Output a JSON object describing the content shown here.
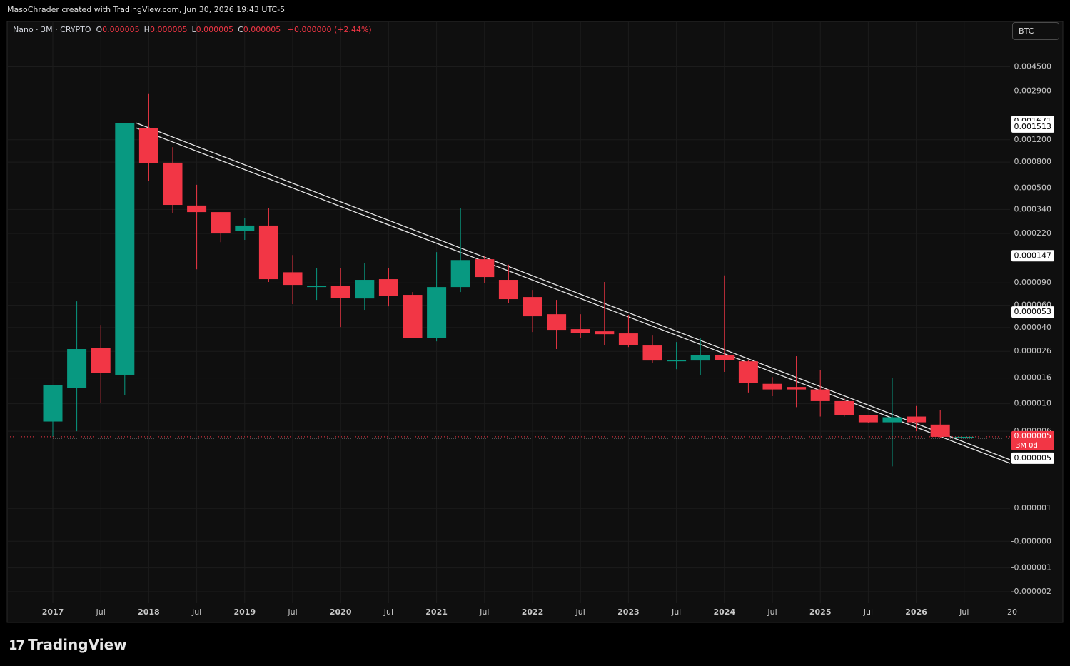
{
  "header": {
    "attribution": "MasoChrader created with TradingView.com, Jun 30, 2026 19:43 UTC-5",
    "symbol": "Nano · 3M · CRYPTO",
    "fields": [
      {
        "key": "O",
        "value": "0.000005"
      },
      {
        "key": "H",
        "value": "0.000005"
      },
      {
        "key": "L",
        "value": "0.000005"
      },
      {
        "key": "C",
        "value": "0.000005"
      }
    ],
    "change": "+0.000000 (+2.44%)",
    "currency": "BTC"
  },
  "footer": {
    "logo": "TradingView"
  },
  "chart_data": {
    "type": "candlestick",
    "categories": [
      "2017",
      null,
      "Jul",
      null,
      "2018",
      null,
      "Jul",
      null,
      "2019",
      null,
      "Jul",
      null,
      "2020",
      null,
      "Jul",
      null,
      "2021",
      null,
      "Jul",
      null,
      "2022",
      null,
      "Jul",
      null,
      "2023",
      null,
      "Jul",
      null,
      "2024",
      null,
      "Jul",
      null,
      "2025",
      null,
      "Jul",
      null,
      "2026",
      null,
      "Jul",
      null,
      "20"
    ],
    "open": [
      7.2e-06,
      1.33e-05,
      2.78e-05,
      1.7e-05,
      0.001475,
      0.000792,
      0.000365,
      0.000324,
      0.000229,
      0.000254,
      0.000109,
      8.34e-05,
      8.57e-05,
      6.78e-05,
      9.62e-05,
      7.24e-05,
      3.33e-05,
      8.34e-05,
      0.000138,
      9.5e-05,
      6.96e-05,
      5.1e-05,
      3.89e-05,
      3.74e-05,
      3.6e-05,
      2.89e-05,
      2.17e-05,
      2.2e-05,
      2.44e-05,
      2.17e-05,
      1.44e-05,
      1.36e-05,
      1.3e-05,
      1.05e-05,
      8.1e-06,
      7.1e-06,
      7.9e-06,
      6.8e-06,
      5.3e-06,
      null,
      null
    ],
    "high": [
      1.4e-05,
      6.44e-05,
      4.2e-05,
      0.001614,
      0.00278,
      0.00105,
      0.000531,
      0.000324,
      0.000289,
      0.000346,
      0.000149,
      0.000117,
      0.000118,
      0.000129,
      0.000117,
      7.62e-05,
      0.000157,
      0.000346,
      0.000147,
      0.000125,
      7.92e-05,
      6.61e-05,
      5.1e-05,
      9.14e-05,
      5.04e-05,
      3.46e-05,
      3.08e-05,
      3.33e-05,
      0.000103,
      2.23e-05,
      1.63e-05,
      2.38e-05,
      1.86e-05,
      1.11e-05,
      8.1e-06,
      1.61e-05,
      9.6e-06,
      8.9e-06,
      5.4e-06,
      null,
      null
    ],
    "low": [
      5.4e-06,
      6e-06,
      1.01e-05,
      1.17e-05,
      0.000566,
      0.00032,
      0.000115,
      0.000188,
      0.000196,
      9.14e-05,
      6.12e-05,
      6.61e-05,
      4.04e-05,
      5.52e-05,
      5.88e-05,
      3.33e-05,
      3.12e-05,
      7.62e-05,
      9.02e-05,
      6.28e-05,
      3.69e-05,
      2.71e-05,
      3.33e-05,
      2.93e-05,
      2.81e-05,
      2.12e-05,
      1.88e-05,
      1.68e-05,
      1.79e-05,
      1.23e-05,
      1.15e-05,
      9.4e-06,
      7.9e-06,
      7.9e-06,
      7e-06,
      3e-06,
      6e-06,
      5.3e-06,
      5.3e-06,
      null,
      null
    ],
    "close": [
      1.4e-05,
      2.71e-05,
      1.75e-05,
      0.001614,
      0.000782,
      0.000369,
      0.000324,
      0.00022,
      0.000254,
      9.62e-05,
      8.67e-05,
      8.57e-05,
      6.87e-05,
      9.5e-05,
      7.14e-05,
      3.33e-05,
      8.34e-05,
      0.000136,
      0.0001,
      6.7e-05,
      4.91e-05,
      3.84e-05,
      3.65e-05,
      3.55e-05,
      2.93e-05,
      2.2e-05,
      2.23e-05,
      2.44e-05,
      2.23e-05,
      1.47e-05,
      1.3e-05,
      1.3e-05,
      1.05e-05,
      8.1e-06,
      7.1e-06,
      7.8e-06,
      7.1e-06,
      5.4e-06,
      5.4e-06,
      null,
      null
    ],
    "up_color": "#089981",
    "down_color": "#f23645",
    "ylim": [
      -2.6e-06,
      0.0074
    ],
    "yticks": [
      {
        "value": 0.0045,
        "label": "0.004500"
      },
      {
        "value": 0.0029,
        "label": "0.002900"
      },
      {
        "value": 0.0012,
        "label": "0.001200"
      },
      {
        "value": 0.0008,
        "label": "0.000800"
      },
      {
        "value": 0.0005,
        "label": "0.000500"
      },
      {
        "value": 0.00034,
        "label": "0.000340"
      },
      {
        "value": 0.00022,
        "label": "0.000220"
      },
      {
        "value": 9e-05,
        "label": "0.000090"
      },
      {
        "value": 6e-05,
        "label": "0.000060"
      },
      {
        "value": 4e-05,
        "label": "0.000040"
      },
      {
        "value": 2.6e-05,
        "label": "0.000026"
      },
      {
        "value": 1.6e-05,
        "label": "0.000016"
      },
      {
        "value": 1e-05,
        "label": "0.000010"
      },
      {
        "value": 6e-06,
        "label": "0.000006"
      },
      {
        "value": 1e-06,
        "label": "0.000001"
      },
      {
        "value": -1e-07,
        "label": "-0.000000"
      },
      {
        "value": -1e-06,
        "label": "-0.000001"
      },
      {
        "value": -2e-06,
        "label": "-0.000002"
      }
    ],
    "grid": true,
    "price_markers": [
      {
        "value": 0.001671,
        "label": "0.001671"
      },
      {
        "value": 0.001513,
        "label": "0.001513"
      },
      {
        "value": 0.000147,
        "label": "0.000147"
      },
      {
        "value": 5.3e-05,
        "label": "0.000053"
      },
      {
        "value": 5e-06,
        "label": "0.000005"
      }
    ],
    "last_price": {
      "value": 5.4e-06,
      "label": "0.000005",
      "countdown": "3M 0d"
    }
  }
}
